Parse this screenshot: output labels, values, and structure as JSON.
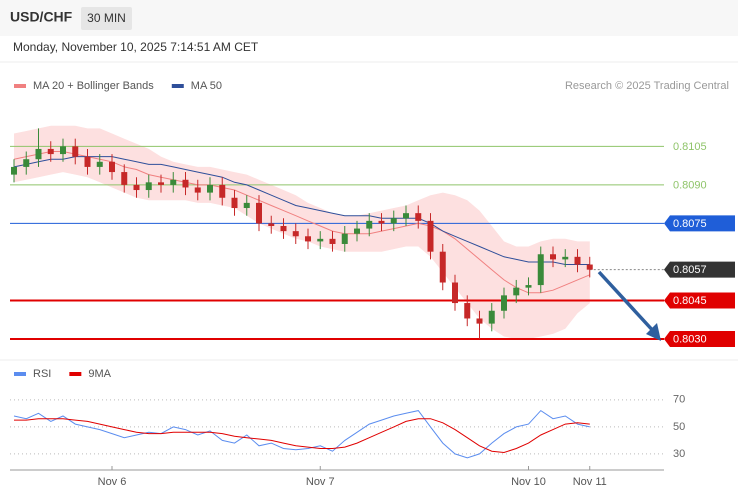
{
  "header": {
    "symbol": "USD/CHF",
    "interval": "30 MIN",
    "timestamp": "Monday, November 10, 2025 7:14:51 AM CET"
  },
  "chart_data": [
    {
      "type": "candlestick",
      "credit": "Research © 2025 Trading Central",
      "up_color": "#3a8a3a",
      "down_color": "#c62828",
      "open": [
        0.8094,
        0.8097,
        0.81,
        0.8104,
        0.8102,
        0.8105,
        0.8101,
        0.8097,
        0.8099,
        0.8095,
        0.809,
        0.8088,
        0.8091,
        0.809,
        0.8092,
        0.8089,
        0.8087,
        0.809,
        0.8085,
        0.8081,
        0.8083,
        0.8075,
        0.8074,
        0.8072,
        0.807,
        0.8068,
        0.8069,
        0.8067,
        0.8071,
        0.8073,
        0.8076,
        0.8075,
        0.8077,
        0.8079,
        0.8076,
        0.8064,
        0.8052,
        0.8044,
        0.8038,
        0.8036,
        0.8041,
        0.8047,
        0.805,
        0.8051,
        0.8063,
        0.8061,
        0.8062,
        0.8059
      ],
      "high": [
        0.81,
        0.8103,
        0.8112,
        0.8107,
        0.8108,
        0.8108,
        0.8104,
        0.8102,
        0.8102,
        0.8098,
        0.8093,
        0.8094,
        0.8094,
        0.8095,
        0.8095,
        0.8092,
        0.8093,
        0.8093,
        0.8088,
        0.8086,
        0.8086,
        0.8078,
        0.8077,
        0.8075,
        0.8073,
        0.8072,
        0.8072,
        0.8074,
        0.8076,
        0.8079,
        0.8079,
        0.808,
        0.8082,
        0.8082,
        0.8079,
        0.8067,
        0.8055,
        0.8047,
        0.8041,
        0.8044,
        0.805,
        0.8053,
        0.8054,
        0.8066,
        0.8066,
        0.8065,
        0.8065,
        0.8062
      ],
      "low": [
        0.8091,
        0.8094,
        0.8097,
        0.8099,
        0.8099,
        0.8098,
        0.8094,
        0.8094,
        0.8092,
        0.8087,
        0.8085,
        0.8085,
        0.8087,
        0.8087,
        0.8086,
        0.8084,
        0.8084,
        0.8082,
        0.8078,
        0.8078,
        0.8072,
        0.8071,
        0.8069,
        0.8067,
        0.8065,
        0.8065,
        0.8064,
        0.8064,
        0.8068,
        0.807,
        0.8072,
        0.8072,
        0.8074,
        0.8073,
        0.8061,
        0.8049,
        0.8041,
        0.8035,
        0.803,
        0.8033,
        0.8038,
        0.8044,
        0.8047,
        0.8048,
        0.8058,
        0.8058,
        0.8056,
        0.8054
      ],
      "close": [
        0.8097,
        0.81,
        0.8104,
        0.8102,
        0.8105,
        0.8101,
        0.8097,
        0.8099,
        0.8095,
        0.809,
        0.8088,
        0.8091,
        0.809,
        0.8092,
        0.8089,
        0.8087,
        0.809,
        0.8085,
        0.8081,
        0.8083,
        0.8075,
        0.8074,
        0.8072,
        0.807,
        0.8068,
        0.8069,
        0.8067,
        0.8071,
        0.8073,
        0.8076,
        0.8075,
        0.8077,
        0.8079,
        0.8076,
        0.8064,
        0.8052,
        0.8044,
        0.8038,
        0.8036,
        0.8041,
        0.8047,
        0.805,
        0.8051,
        0.8063,
        0.8061,
        0.8062,
        0.8059,
        0.8057
      ],
      "series": [
        {
          "name": "MA 20 + Bollinger Bands",
          "color": "#f08080",
          "band_color": "#fde0e0",
          "values": [
            0.81,
            0.8101,
            0.8102,
            0.8103,
            0.8103,
            0.8102,
            0.8101,
            0.81,
            0.8099,
            0.8097,
            0.8096,
            0.8094,
            0.8093,
            0.8092,
            0.8091,
            0.809,
            0.809,
            0.8089,
            0.8088,
            0.8086,
            0.8084,
            0.8082,
            0.808,
            0.8078,
            0.8076,
            0.8074,
            0.8072,
            0.8071,
            0.8071,
            0.8071,
            0.8072,
            0.8073,
            0.8074,
            0.8075,
            0.8074,
            0.8072,
            0.8069,
            0.8065,
            0.8061,
            0.8057,
            0.8053,
            0.805,
            0.8048,
            0.8048,
            0.8049,
            0.8051,
            0.8053,
            0.8055
          ],
          "upper": [
            0.811,
            0.8111,
            0.8112,
            0.8113,
            0.8113,
            0.8113,
            0.8112,
            0.8112,
            0.811,
            0.8108,
            0.8106,
            0.8104,
            0.8101,
            0.8099,
            0.8098,
            0.8097,
            0.8097,
            0.8096,
            0.8095,
            0.8094,
            0.8092,
            0.809,
            0.8088,
            0.8086,
            0.8083,
            0.8081,
            0.8079,
            0.8078,
            0.8078,
            0.8079,
            0.808,
            0.8081,
            0.8082,
            0.8084,
            0.8086,
            0.8087,
            0.8086,
            0.8084,
            0.808,
            0.8074,
            0.8068,
            0.8066,
            0.8066,
            0.8068,
            0.8069,
            0.8069,
            0.8068,
            0.8068
          ],
          "lower": [
            0.8091,
            0.8092,
            0.8093,
            0.8094,
            0.8095,
            0.8094,
            0.8093,
            0.8091,
            0.8089,
            0.8087,
            0.8085,
            0.8084,
            0.8084,
            0.8084,
            0.8084,
            0.8083,
            0.8083,
            0.8082,
            0.8081,
            0.8078,
            0.8075,
            0.8073,
            0.8071,
            0.8069,
            0.8068,
            0.8066,
            0.8065,
            0.8064,
            0.8064,
            0.8064,
            0.8064,
            0.8065,
            0.8066,
            0.8066,
            0.8062,
            0.8056,
            0.805,
            0.8044,
            0.8038,
            0.8034,
            0.8031,
            0.803,
            0.803,
            0.8031,
            0.8032,
            0.8034,
            0.804,
            0.8044
          ]
        },
        {
          "name": "MA 50",
          "color": "#2f4f9a",
          "values": [
            0.8097,
            0.8098,
            0.8099,
            0.81,
            0.81,
            0.8101,
            0.8101,
            0.8101,
            0.8101,
            0.81,
            0.8099,
            0.8098,
            0.8098,
            0.8097,
            0.8096,
            0.8095,
            0.8094,
            0.8093,
            0.8091,
            0.809,
            0.8088,
            0.8086,
            0.8084,
            0.8082,
            0.8081,
            0.808,
            0.8079,
            0.8078,
            0.8078,
            0.8078,
            0.8077,
            0.8077,
            0.8077,
            0.8077,
            0.8075,
            0.8072,
            0.807,
            0.8068,
            0.8066,
            0.8064,
            0.8062,
            0.8061,
            0.806,
            0.806,
            0.806,
            0.8059,
            0.8059,
            0.8059
          ]
        }
      ],
      "levels": [
        {
          "value": 0.8105,
          "color": "#8fc46a",
          "style": "thin",
          "boxed": false
        },
        {
          "value": 0.809,
          "label": "0.8090",
          "color": "#8fc46a",
          "style": "thin",
          "boxed": false
        },
        {
          "value": 0.8075,
          "color": "#1f5ed8",
          "style": "thin",
          "boxed": true
        },
        {
          "value": 0.8057,
          "color": "#333333",
          "style": "dotted",
          "boxed": true
        },
        {
          "value": 0.8045,
          "color": "#e00000",
          "style": "thick",
          "boxed": true
        },
        {
          "value": 0.803,
          "label": "0.8030",
          "color": "#e00000",
          "style": "thick",
          "boxed": true
        }
      ],
      "ylim": [
        0.8023,
        0.8125
      ]
    },
    {
      "type": "line",
      "categories": [
        null,
        null,
        null,
        null,
        null,
        null,
        null,
        null,
        "Nov 6",
        null,
        null,
        null,
        null,
        null,
        null,
        null,
        null,
        null,
        null,
        null,
        null,
        null,
        null,
        null,
        null,
        "Nov 7",
        null,
        null,
        null,
        null,
        null,
        null,
        null,
        null,
        null,
        null,
        null,
        null,
        null,
        null,
        null,
        null,
        "Nov 10",
        null,
        null,
        null,
        null,
        "Nov 11"
      ],
      "series": [
        {
          "name": "RSI",
          "color": "#5b8def",
          "values": [
            58,
            56,
            60,
            54,
            58,
            52,
            50,
            48,
            45,
            42,
            44,
            46,
            45,
            50,
            48,
            44,
            47,
            40,
            38,
            44,
            36,
            38,
            34,
            33,
            34,
            36,
            32,
            40,
            46,
            52,
            55,
            58,
            60,
            62,
            50,
            38,
            30,
            27,
            30,
            38,
            45,
            50,
            52,
            62,
            56,
            58,
            52,
            50
          ]
        },
        {
          "name": "9MA",
          "color": "#e00000",
          "values": [
            55,
            55,
            56,
            56,
            56,
            55,
            54,
            52,
            50,
            48,
            46,
            45,
            45,
            46,
            46,
            46,
            46,
            45,
            43,
            42,
            41,
            40,
            38,
            36,
            35,
            34,
            34,
            35,
            38,
            42,
            46,
            50,
            54,
            56,
            56,
            53,
            48,
            42,
            36,
            32,
            31,
            34,
            38,
            44,
            48,
            52,
            53,
            52
          ]
        }
      ],
      "ylim": [
        24,
        78
      ],
      "yticks": [
        70,
        50,
        30
      ],
      "grid": true
    }
  ]
}
